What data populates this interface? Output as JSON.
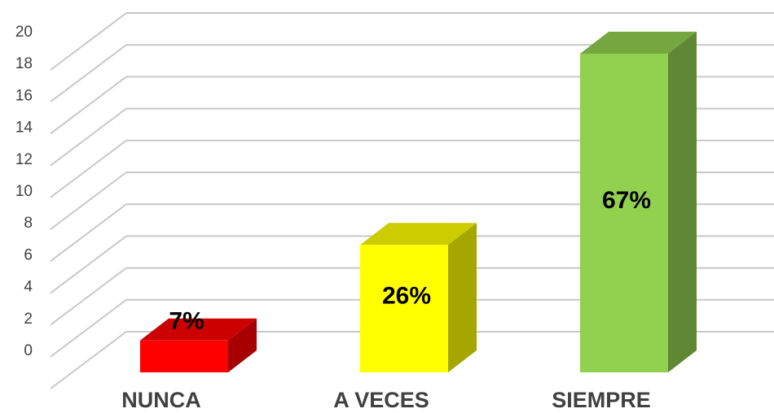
{
  "chart_data": {
    "type": "bar3d",
    "categories": [
      "NUNCA",
      "A VECES",
      "SIEMPRE"
    ],
    "values": [
      2,
      8,
      20
    ],
    "value_labels": [
      "7%",
      "26%",
      "67%"
    ],
    "colors": [
      "#ff0000",
      "#ffff00",
      "#92d050"
    ],
    "ylim": [
      0,
      20
    ],
    "yticks": [
      0,
      2,
      4,
      6,
      8,
      10,
      12,
      14,
      16,
      18,
      20
    ],
    "grid": true
  }
}
